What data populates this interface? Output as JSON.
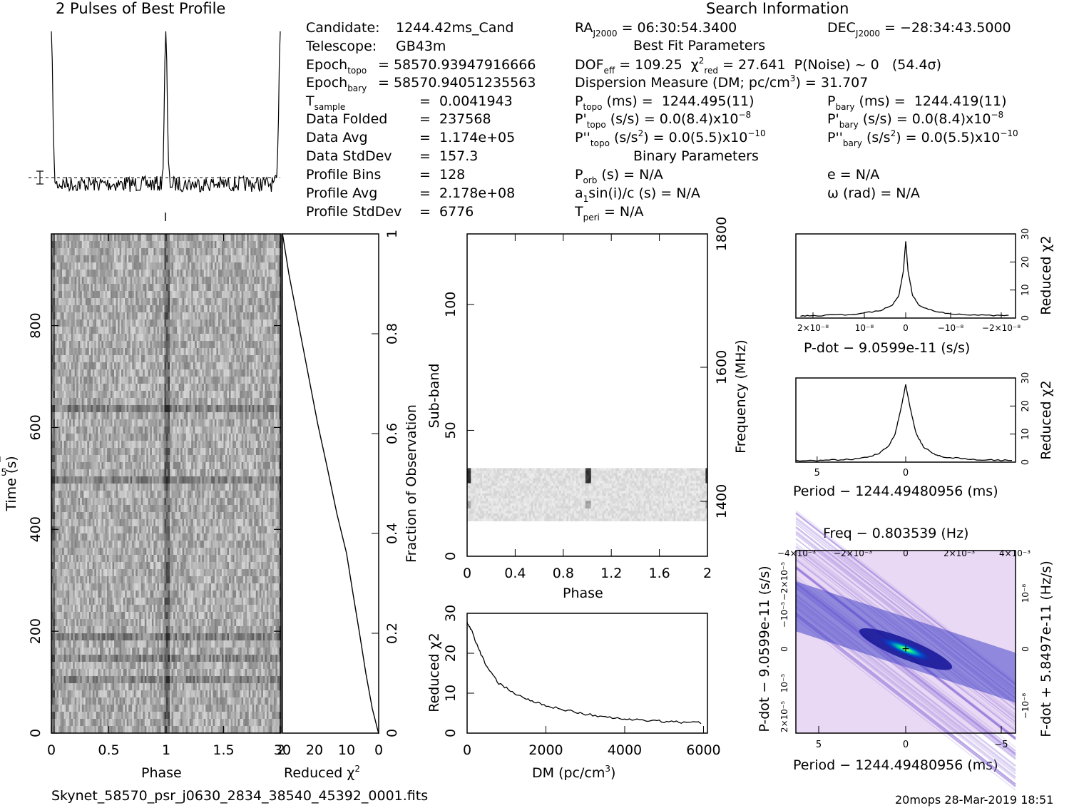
{
  "header": {
    "profile_title": "2 Pulses of Best Profile",
    "search_title": "Search Information",
    "best_fit_title": "Best Fit Parameters",
    "binary_title": "Binary Parameters"
  },
  "info_left": [
    {
      "label": "Candidate:",
      "value": "1244.42ms_Cand"
    },
    {
      "label": "Telescope:",
      "value": "GB43m"
    },
    {
      "label": "Epoch",
      "sub": "topo",
      "value": "= 58570.93947916666"
    },
    {
      "label": "Epoch",
      "sub": "bary",
      "value": "= 58570.94051235563"
    },
    {
      "label": "T",
      "sub": "sample",
      "value": "0.0041943"
    },
    {
      "label": "Data Folded",
      "value": "237568"
    },
    {
      "label": "Data Avg",
      "value": "1.174e+05"
    },
    {
      "label": "Data StdDev",
      "value": "157.3"
    },
    {
      "label": "Profile Bins",
      "value": "128"
    },
    {
      "label": "Profile Avg",
      "value": "2.178e+08"
    },
    {
      "label": "Profile StdDev",
      "value": "6776"
    }
  ],
  "search_info": {
    "ra": "RA",
    "ra_sub": "J2000",
    "ra_value": "= 06:30:54.3400",
    "dec": "DEC",
    "dec_sub": "J2000",
    "dec_value": "= −28:34:43.5000",
    "dof": "DOF",
    "dof_sub": "eff",
    "dof_value": "= 109.25",
    "chi2_sub": "red",
    "chi2_value": "= 27.641",
    "pnoise": "P(Noise) ~ 0",
    "sigma": "(54.4σ)",
    "dm_line": "Dispersion Measure (DM; pc/cm",
    "dm_sup": "3",
    "dm_value": ") = 31.707",
    "ptopo_label": "(ms) =",
    "ptopo_value": "1244.495(11)",
    "pbary_label": "(ms) =",
    "pbary_value": "1244.419(11)",
    "pdot_topo": "(s/s) = 0.0(8.4)x10",
    "pdot_exp": "−8",
    "pddot_topo": "(s/s",
    "pddot_topo_rest": ") = 0.0(5.5)x10",
    "pddot_exp": "−10",
    "porb": "(s) = N/A",
    "a1": "a",
    "a1_rest": "sin(i)/c (s) = N/A",
    "tperi": "= N/A",
    "e": "e = N/A",
    "omega": "ω (rad) = N/A",
    "topo": "topo",
    "bary": "bary",
    "orb": "orb",
    "peri": "peri",
    "one": "1"
  },
  "axes": {
    "phase": "Phase",
    "time": "Time (s)",
    "reduced_chi2": "Reduced χ",
    "fraction": "Fraction of Observation",
    "subband": "Sub-band",
    "frequency": "Frequency (MHz)",
    "dm": "DM (pc/cm",
    "pdot": "P-dot − 9.0599e-11 (s/s)",
    "period": "Period − 1244.49480956 (ms)",
    "freq": "Freq − 0.803539 (Hz)",
    "pdot_side": "P-dot − 9.0599e-11 (s/s)",
    "fdot_side": "F-dot + 5.8497e-11 (Hz/s)"
  },
  "footer": {
    "filename": "Skynet_58570_psr_j0630_2834_38540_45392_0001.fits",
    "stamp": "20mops 28-Mar-2019 18:51"
  },
  "chart_data": [
    {
      "type": "line",
      "title": "2 Pulses of Best Profile",
      "x": [
        0,
        0.5,
        1.0,
        1.5,
        2.0
      ],
      "xlabel": "",
      "ylabel": "",
      "peaks_at_phase": [
        0,
        1,
        2
      ]
    },
    {
      "type": "heatmap",
      "xlabel": "Phase",
      "ylabel": "Time (s)",
      "xlim": [
        0,
        2
      ],
      "ylim": [
        0,
        980
      ],
      "xticks": [
        "0",
        "0.5",
        "1",
        "1.5",
        "2"
      ],
      "yticks": [
        "0",
        "200",
        "400",
        "600",
        "800"
      ]
    },
    {
      "type": "line",
      "xlabel": "Reduced χ2",
      "ylabel": "Fraction of Observation",
      "xticks": [
        "30",
        "20",
        "10",
        "0"
      ],
      "yticks": [
        "0",
        "0.2",
        "0.4",
        "0.6",
        "0.8",
        "1"
      ],
      "x": [
        0,
        2,
        4,
        6,
        8,
        10,
        13,
        16,
        19,
        22,
        25,
        28,
        30
      ],
      "y": [
        0,
        0.05,
        0.12,
        0.2,
        0.28,
        0.36,
        0.44,
        0.53,
        0.62,
        0.72,
        0.82,
        0.92,
        1.0
      ]
    },
    {
      "type": "heatmap",
      "xlabel": "Phase",
      "ylabel": "Sub-band",
      "y2label": "Frequency (MHz)",
      "xlim": [
        0,
        2
      ],
      "ylim": [
        0,
        128
      ],
      "xticks": [
        "0",
        "0.4",
        "0.8",
        "1.2",
        "1.6",
        "2"
      ],
      "yticks": [
        "0",
        "50",
        "100"
      ],
      "y2ticks": [
        "1400",
        "1600",
        "1800"
      ]
    },
    {
      "type": "line",
      "xlabel": "DM (pc/cm3)",
      "ylabel": "Reduced χ2",
      "xticks": [
        "0",
        "2000",
        "4000",
        "6000"
      ],
      "yticks": [
        "0",
        "10",
        "20",
        "30"
      ],
      "x": [
        0,
        100,
        300,
        500,
        800,
        1200,
        1600,
        2000,
        2500,
        3000,
        3500,
        4000,
        4500,
        5000,
        5500,
        6000
      ],
      "y": [
        27.6,
        26,
        21,
        16.5,
        12.5,
        10,
        8.2,
        6.8,
        5.8,
        4.8,
        4.0,
        3.5,
        3.2,
        2.9,
        2.7,
        2.6
      ]
    },
    {
      "type": "line",
      "xlabel": "P-dot − 9.0599e-11 (s/s)",
      "ylabel": "Reduced χ2",
      "xticks": [
        "2×10⁻⁸",
        "10⁻⁸",
        "0",
        "−10⁻⁸",
        "−2×10⁻⁸"
      ],
      "yticks": [
        "0",
        "10",
        "20",
        "30"
      ],
      "x": [
        2.3,
        2.0,
        1.5,
        1.0,
        0.6,
        0.3,
        0.15,
        0.05,
        0,
        -0.05,
        -0.15,
        -0.3,
        -0.6,
        -1.0,
        -1.5,
        -2.0,
        -2.3
      ],
      "y": [
        0.8,
        0.9,
        1.1,
        1.5,
        2.5,
        4.5,
        8,
        17,
        27.6,
        17,
        8,
        4.5,
        2.5,
        1.5,
        1.1,
        0.9,
        0.8
      ]
    },
    {
      "type": "line",
      "xlabel": "Period − 1244.49480956 (ms)",
      "ylabel": "Reduced χ2",
      "xticks": [
        "5",
        "0",
        "−5"
      ],
      "yticks": [
        "0",
        "10",
        "20",
        "30"
      ],
      "x": [
        6.2,
        5,
        4,
        3,
        2,
        1.5,
        1,
        0.6,
        0.3,
        0,
        -0.3,
        -0.6,
        -1,
        -1.5,
        -2,
        -3,
        -4,
        -5,
        -6.2
      ],
      "y": [
        0.5,
        0.6,
        0.8,
        1.1,
        2.0,
        3.2,
        5.5,
        10,
        18,
        27.6,
        18,
        10,
        5.5,
        3.2,
        2.0,
        1.4,
        0.9,
        0.7,
        0.6
      ]
    },
    {
      "type": "heatmap",
      "xlabel": "Period − 1244.49480956 (ms)",
      "ylabel": "P-dot − 9.0599e-11 (s/s)",
      "x2label": "Freq − 0.803539 (Hz)",
      "y2label": "F-dot + 5.8497e-11 (Hz/s)",
      "xticks": [
        "5",
        "0",
        "−5"
      ],
      "x2ticks": [
        "−4×10⁻³",
        "−2×10⁻³",
        "0",
        "2×10⁻³",
        "4×10⁻³"
      ]
    }
  ],
  "colors": {
    "ink": "#000000",
    "grid": "#000000",
    "ppdot_bg": "#e9d9f4",
    "ppdot_core": "#1a1aa0",
    "ppdot_peak": "#00e0a0"
  }
}
